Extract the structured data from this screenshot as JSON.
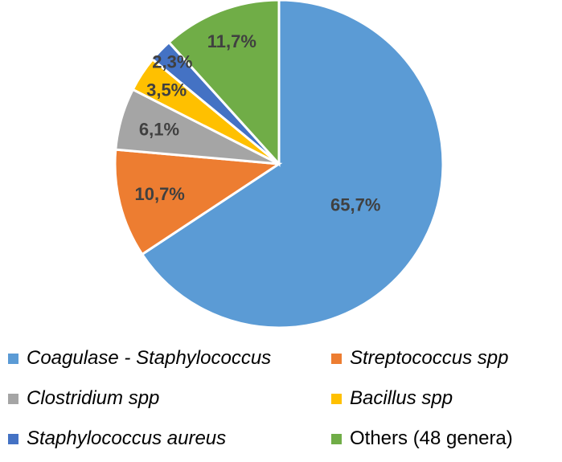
{
  "chart_data": {
    "type": "pie",
    "slices": [
      {
        "label": "Coagulase - Staphylococcus",
        "value": 65.7,
        "display": "65,7%",
        "color": "#5B9BD5",
        "italic": true
      },
      {
        "label": "Streptococcus spp",
        "value": 10.7,
        "display": "10,7%",
        "color": "#ED7D31",
        "italic": true
      },
      {
        "label": "Clostridium spp",
        "value": 6.1,
        "display": "6,1%",
        "color": "#A5A5A5",
        "italic": true
      },
      {
        "label": "Bacillus spp",
        "value": 3.5,
        "display": "3,5%",
        "color": "#FFC000",
        "italic": true
      },
      {
        "label": "Staphylococcus aureus",
        "value": 2.3,
        "display": "2,3%",
        "color": "#4472C4",
        "italic": true
      },
      {
        "label": "Others (48 genera)",
        "value": 11.7,
        "display": "11,7%",
        "color": "#70AD47",
        "italic": false
      }
    ],
    "direction": "clockwise",
    "start": "top",
    "legend_placement": "bottom"
  }
}
